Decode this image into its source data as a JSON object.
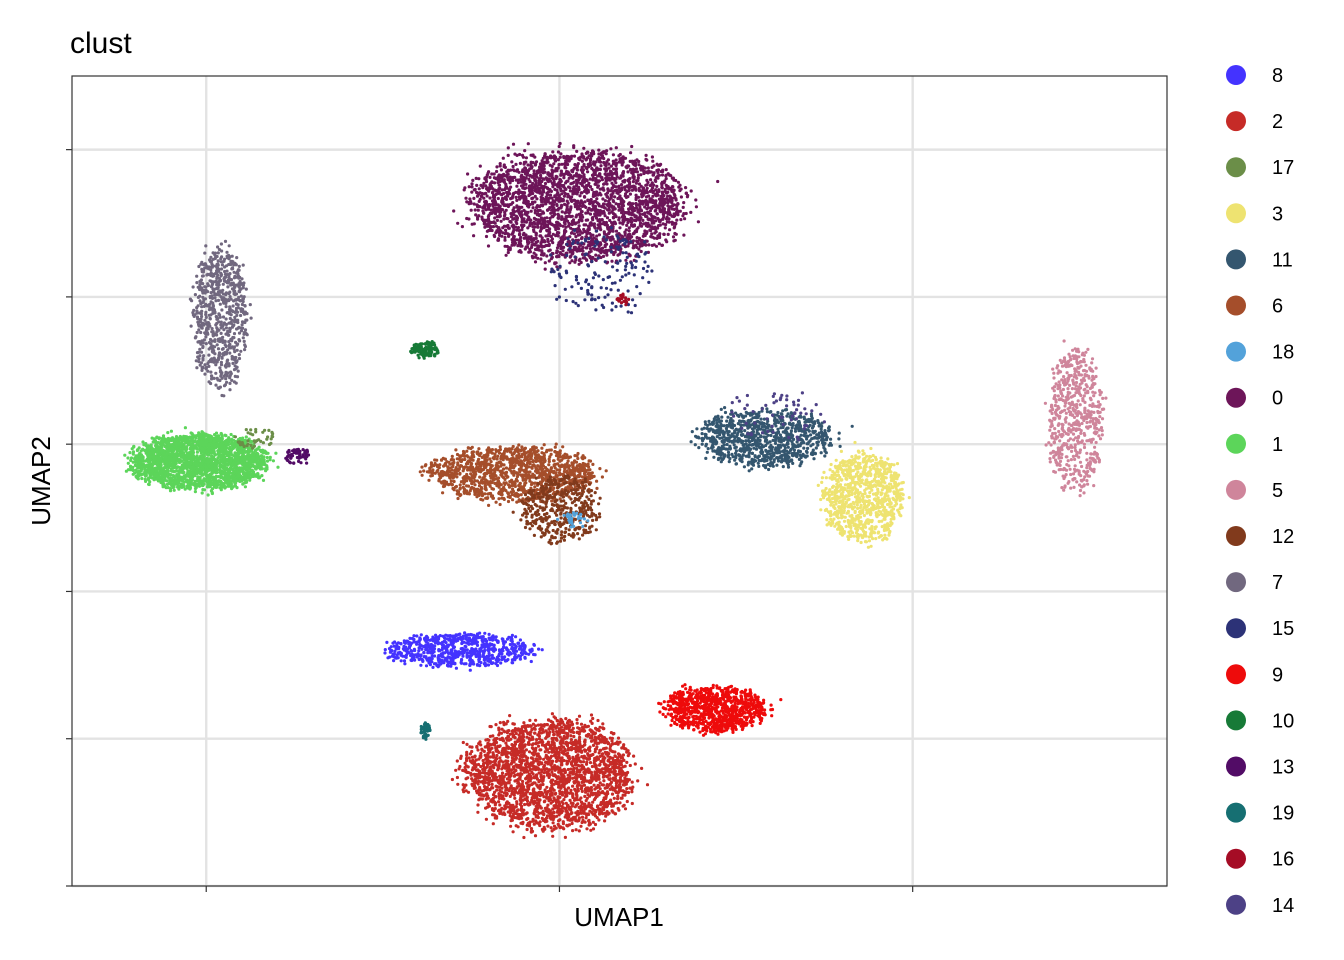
{
  "chart_data": {
    "type": "scatter",
    "title": "clust",
    "xlabel": "UMAP1",
    "ylabel": "UMAP2",
    "xlim": [
      -7.0,
      24.0
    ],
    "ylim": [
      -15.0,
      12.5
    ],
    "x_gridlines": [
      -3.2,
      6.8,
      16.8
    ],
    "y_gridlines": [
      -15,
      -10,
      -5,
      0,
      5,
      10
    ],
    "grid": true,
    "legend_position": "right",
    "legend_title": "",
    "clusters": [
      {
        "name": "8",
        "color": "#4433FF"
      },
      {
        "name": "2",
        "color": "#C62B27"
      },
      {
        "name": "17",
        "color": "#6B8E48"
      },
      {
        "name": "3",
        "color": "#EEE371"
      },
      {
        "name": "11",
        "color": "#34566F"
      },
      {
        "name": "6",
        "color": "#A54E2B"
      },
      {
        "name": "18",
        "color": "#53A2DA"
      },
      {
        "name": "0",
        "color": "#6D1559"
      },
      {
        "name": "1",
        "color": "#5CD55A"
      },
      {
        "name": "5",
        "color": "#CF859B"
      },
      {
        "name": "12",
        "color": "#813A1C"
      },
      {
        "name": "7",
        "color": "#71687F"
      },
      {
        "name": "15",
        "color": "#2C3277"
      },
      {
        "name": "9",
        "color": "#EE0B0B"
      },
      {
        "name": "10",
        "color": "#177A37"
      },
      {
        "name": "13",
        "color": "#520C66"
      },
      {
        "name": "19",
        "color": "#166F72"
      },
      {
        "name": "16",
        "color": "#A50C25"
      },
      {
        "name": "14",
        "color": "#4D4186"
      }
    ],
    "cluster_regions": [
      {
        "cluster": "0",
        "center": [
          7.3,
          8.1
        ],
        "spread": [
          3.2,
          2.0
        ],
        "approx_points": 2600
      },
      {
        "cluster": "7",
        "center": [
          -2.8,
          4.3
        ],
        "spread": [
          0.8,
          2.5
        ],
        "approx_points": 700
      },
      {
        "cluster": "1",
        "center": [
          -3.4,
          -0.6
        ],
        "spread": [
          2.0,
          1.0
        ],
        "approx_points": 2200
      },
      {
        "cluster": "10",
        "center": [
          3.0,
          3.2
        ],
        "spread": [
          0.4,
          0.3
        ],
        "approx_points": 120
      },
      {
        "cluster": "6",
        "center": [
          5.5,
          -1.0
        ],
        "spread": [
          2.5,
          1.0
        ],
        "approx_points": 1200
      },
      {
        "cluster": "12",
        "center": [
          6.8,
          -2.2
        ],
        "spread": [
          1.2,
          1.2
        ],
        "approx_points": 400
      },
      {
        "cluster": "11",
        "center": [
          12.6,
          0.2
        ],
        "spread": [
          2.0,
          1.0
        ],
        "approx_points": 900
      },
      {
        "cluster": "3",
        "center": [
          15.4,
          -1.8
        ],
        "spread": [
          1.2,
          1.6
        ],
        "approx_points": 900
      },
      {
        "cluster": "5",
        "center": [
          21.4,
          0.8
        ],
        "spread": [
          0.8,
          2.6
        ],
        "approx_points": 600
      },
      {
        "cluster": "8",
        "center": [
          4.0,
          -7.0
        ],
        "spread": [
          2.2,
          0.6
        ],
        "approx_points": 700
      },
      {
        "cluster": "2",
        "center": [
          6.5,
          -11.2
        ],
        "spread": [
          2.5,
          2.0
        ],
        "approx_points": 2300
      },
      {
        "cluster": "9",
        "center": [
          11.2,
          -9.0
        ],
        "spread": [
          1.5,
          0.8
        ],
        "approx_points": 900
      },
      {
        "cluster": "19",
        "center": [
          3.0,
          -9.7
        ],
        "spread": [
          0.15,
          0.3
        ],
        "approx_points": 40
      },
      {
        "cluster": "13",
        "center": [
          -0.6,
          -0.4
        ],
        "spread": [
          0.4,
          0.3
        ],
        "approx_points": 60
      },
      {
        "cluster": "15",
        "center": [
          8.0,
          5.8
        ],
        "spread": [
          1.5,
          1.5
        ],
        "approx_points": 150
      },
      {
        "cluster": "16",
        "center": [
          8.6,
          4.9
        ],
        "spread": [
          0.2,
          0.2
        ],
        "approx_points": 20
      },
      {
        "cluster": "17",
        "center": [
          -1.8,
          0.2
        ],
        "spread": [
          0.6,
          0.4
        ],
        "approx_points": 40
      },
      {
        "cluster": "18",
        "center": [
          7.2,
          -2.6
        ],
        "spread": [
          0.5,
          0.3
        ],
        "approx_points": 30
      },
      {
        "cluster": "14",
        "center": [
          13.0,
          1.0
        ],
        "spread": [
          1.5,
          1.0
        ],
        "approx_points": 60
      }
    ]
  }
}
